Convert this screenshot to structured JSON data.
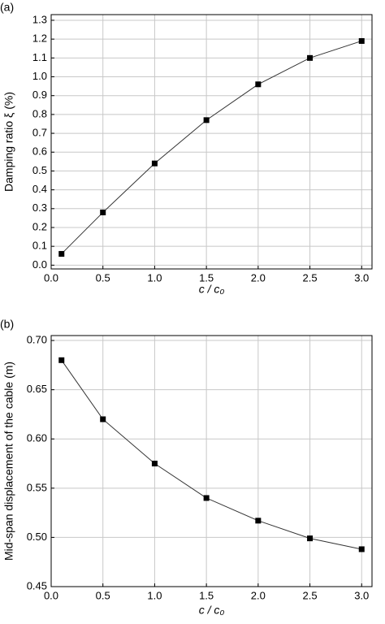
{
  "chart_data": [
    {
      "type": "line",
      "label": "(a)",
      "xlabel": "c / c₀",
      "ylabel": "Damping ratio ξ (%)",
      "x": [
        0.1,
        0.5,
        1.0,
        1.5,
        2.0,
        2.5,
        3.0
      ],
      "series": [
        {
          "color": "#000000",
          "values": [
            0.06,
            0.28,
            0.54,
            0.77,
            0.96,
            1.1,
            1.19
          ]
        }
      ],
      "xlim": [
        0,
        3.1
      ],
      "ylim": [
        -0.02,
        1.33
      ],
      "xticks": [
        {
          "value": 0,
          "label": "0.0"
        },
        0.5,
        {
          "value": 1,
          "label": "1.0"
        },
        1.5,
        {
          "value": 2,
          "label": "2.0"
        },
        2.5,
        {
          "value": 3,
          "label": "3.0"
        }
      ],
      "yticks": [
        {
          "value": 0,
          "label": "0.0"
        },
        0.1,
        0.2,
        0.3,
        0.4,
        0.5,
        0.6,
        0.7,
        0.8,
        0.9,
        {
          "value": 1,
          "label": "1.0"
        },
        1.1,
        1.2,
        1.3
      ],
      "grid": true
    },
    {
      "type": "line",
      "label": "(b)",
      "xlabel": "c / c₀",
      "ylabel": "Mid-span displacement of the cable (m)",
      "x": [
        0.1,
        0.5,
        1.0,
        1.5,
        2.0,
        2.5,
        3.0
      ],
      "series": [
        {
          "color": "#000000",
          "values": [
            0.68,
            0.62,
            0.575,
            0.54,
            0.517,
            0.499,
            0.488
          ]
        }
      ],
      "xlim": [
        0,
        3.1
      ],
      "ylim": [
        0.45,
        0.705
      ],
      "xticks": [
        {
          "value": 0,
          "label": "0.0"
        },
        0.5,
        {
          "value": 1,
          "label": "1.0"
        },
        1.5,
        {
          "value": 2,
          "label": "2.0"
        },
        2.5,
        {
          "value": 3,
          "label": "3.0"
        }
      ],
      "yticks": [
        {
          "value": 0.45,
          "label": "0.45"
        },
        {
          "value": 0.5,
          "label": "0.50"
        },
        {
          "value": 0.55,
          "label": "0.55"
        },
        {
          "value": 0.6,
          "label": "0.60"
        },
        {
          "value": 0.65,
          "label": "0.65"
        },
        {
          "value": 0.7,
          "label": "0.70"
        }
      ],
      "grid": true
    }
  ]
}
